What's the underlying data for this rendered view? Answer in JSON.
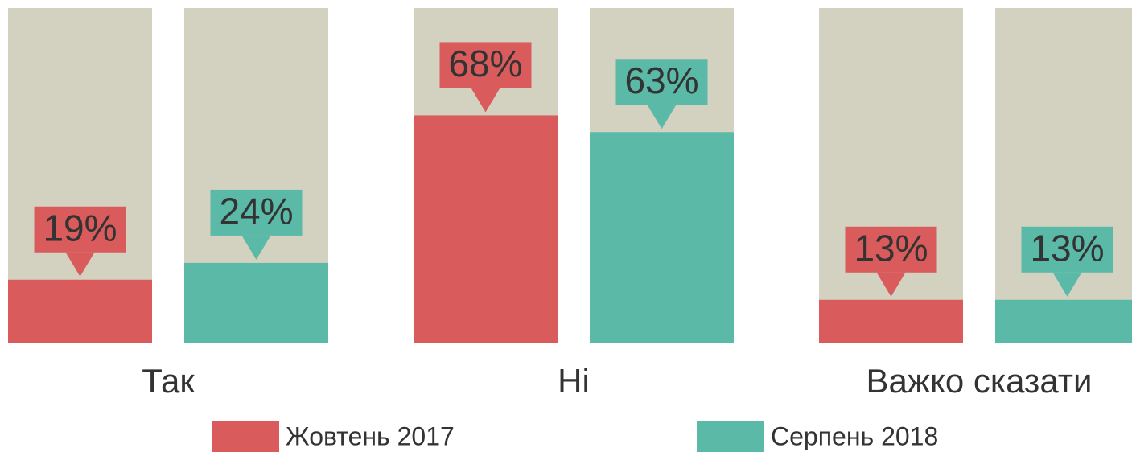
{
  "chart_data": {
    "type": "bar",
    "categories": [
      "Так",
      "Ні",
      "Важко сказати"
    ],
    "series": [
      {
        "name": "Жовтень 2017",
        "color": "#d95b5b",
        "values": [
          19,
          68,
          13
        ],
        "value_labels": [
          "19%",
          "68%",
          "13%"
        ]
      },
      {
        "name": "Серпень 2018",
        "color": "#5bb9a8",
        "values": [
          24,
          63,
          13
        ],
        "value_labels": [
          "24%",
          "63%",
          "13%"
        ]
      }
    ],
    "ylim": [
      0,
      100
    ],
    "track_color": "#d3d1bf"
  }
}
